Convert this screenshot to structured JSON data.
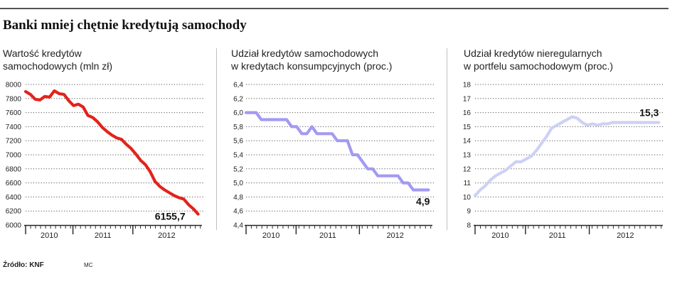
{
  "header": {
    "title": "Banki mniej chętnie kredytują samochody"
  },
  "footer": {
    "source": "Źródło: KNF",
    "author": "MC"
  },
  "chart_data": [
    {
      "type": "line",
      "title": "Wartość kredytów\nsamochodowych (mln zł)",
      "color": "#e3231b",
      "ylim": [
        6000,
        8000
      ],
      "yticks": [
        6000,
        6200,
        6400,
        6600,
        6800,
        7000,
        7200,
        7400,
        7600,
        7800,
        8000
      ],
      "ytick_labels": [
        "6000",
        "6200",
        "6400",
        "6600",
        "6800",
        "7000",
        "7200",
        "7400",
        "7600",
        "7800",
        "8000"
      ],
      "xlabels": [
        "2010",
        "2011",
        "2012"
      ],
      "year_boundaries": [
        2009.71,
        2010.5,
        2011.5
      ],
      "x_range": [
        2009.71,
        2012.63
      ],
      "x": [
        2009.71,
        2009.79,
        2009.87,
        2009.95,
        2010.03,
        2010.11,
        2010.19,
        2010.27,
        2010.35,
        2010.43,
        2010.51,
        2010.59,
        2010.67,
        2010.75,
        2010.83,
        2010.91,
        2010.99,
        2011.07,
        2011.15,
        2011.23,
        2011.31,
        2011.39,
        2011.47,
        2011.55,
        2011.63,
        2011.71,
        2011.79,
        2011.87,
        2011.95,
        2012.03,
        2012.11,
        2012.19,
        2012.27,
        2012.35,
        2012.43,
        2012.51,
        2012.59
      ],
      "values": [
        7900,
        7860,
        7790,
        7780,
        7830,
        7820,
        7910,
        7870,
        7860,
        7770,
        7700,
        7720,
        7680,
        7560,
        7530,
        7470,
        7390,
        7330,
        7280,
        7240,
        7220,
        7150,
        7090,
        7010,
        6920,
        6860,
        6760,
        6620,
        6550,
        6500,
        6460,
        6420,
        6390,
        6370,
        6290,
        6230,
        6155.7
      ],
      "last_label": "6155,7"
    },
    {
      "type": "line",
      "title": "Udział kredytów samochodowych\nw kredytach konsumpcyjnych (proc.)",
      "color": "#a39af2",
      "ylim": [
        4.4,
        6.4
      ],
      "yticks": [
        4.4,
        4.6,
        4.8,
        5.0,
        5.2,
        5.4,
        5.6,
        5.8,
        6.0,
        6.2,
        6.4
      ],
      "ytick_labels": [
        "4,4",
        "4,6",
        "4,8",
        "5,0",
        "5,2",
        "5,4",
        "5,6",
        "5,8",
        "6,0",
        "6,2",
        "6,4"
      ],
      "xlabels": [
        "2010",
        "2011",
        "2012"
      ],
      "year_boundaries": [
        2009.71,
        2010.5,
        2011.5
      ],
      "x_range": [
        2009.71,
        2012.63
      ],
      "x": [
        2009.71,
        2009.79,
        2009.87,
        2009.95,
        2010.03,
        2010.11,
        2010.19,
        2010.27,
        2010.35,
        2010.43,
        2010.51,
        2010.59,
        2010.67,
        2010.75,
        2010.83,
        2010.91,
        2010.99,
        2011.07,
        2011.15,
        2011.23,
        2011.31,
        2011.39,
        2011.47,
        2011.55,
        2011.63,
        2011.71,
        2011.79,
        2011.87,
        2011.95,
        2012.03,
        2012.11,
        2012.19,
        2012.27,
        2012.35,
        2012.43,
        2012.51,
        2012.59
      ],
      "values": [
        6.0,
        6.0,
        6.0,
        5.9,
        5.9,
        5.9,
        5.9,
        5.9,
        5.9,
        5.8,
        5.8,
        5.7,
        5.7,
        5.8,
        5.7,
        5.7,
        5.7,
        5.7,
        5.6,
        5.6,
        5.6,
        5.4,
        5.4,
        5.3,
        5.2,
        5.2,
        5.1,
        5.1,
        5.1,
        5.1,
        5.1,
        5.0,
        5.0,
        4.9,
        4.9,
        4.9,
        4.9
      ],
      "last_label": "4,9"
    },
    {
      "type": "line",
      "title": "Udział kredytów nieregularnych\nw portfelu samochodowym (proc.)",
      "color": "#cdd1f4",
      "ylim": [
        8,
        18
      ],
      "yticks": [
        8,
        9,
        10,
        11,
        12,
        13,
        14,
        15,
        16,
        17,
        18
      ],
      "ytick_labels": [
        "8",
        "9",
        "10",
        "11",
        "12",
        "13",
        "14",
        "15",
        "16",
        "17",
        "18"
      ],
      "xlabels": [
        "2010",
        "2011",
        "2012"
      ],
      "year_boundaries": [
        2009.71,
        2010.5,
        2011.5
      ],
      "x_range": [
        2009.71,
        2012.63
      ],
      "x": [
        2009.71,
        2009.79,
        2009.87,
        2009.95,
        2010.03,
        2010.11,
        2010.19,
        2010.27,
        2010.35,
        2010.43,
        2010.51,
        2010.59,
        2010.67,
        2010.75,
        2010.83,
        2010.91,
        2010.99,
        2011.07,
        2011.15,
        2011.23,
        2011.31,
        2011.39,
        2011.47,
        2011.55,
        2011.63,
        2011.71,
        2011.79,
        2011.87,
        2011.95,
        2012.03,
        2012.11,
        2012.19,
        2012.27,
        2012.35,
        2012.43,
        2012.51,
        2012.59
      ],
      "values": [
        10.1,
        10.5,
        10.8,
        11.2,
        11.5,
        11.7,
        11.9,
        12.2,
        12.5,
        12.5,
        12.7,
        12.9,
        13.3,
        13.8,
        14.3,
        14.9,
        15.1,
        15.3,
        15.5,
        15.7,
        15.6,
        15.3,
        15.1,
        15.2,
        15.1,
        15.2,
        15.2,
        15.3,
        15.3,
        15.3,
        15.3,
        15.3,
        15.3,
        15.3,
        15.3,
        15.3,
        15.3
      ],
      "last_label": "15,3"
    }
  ]
}
